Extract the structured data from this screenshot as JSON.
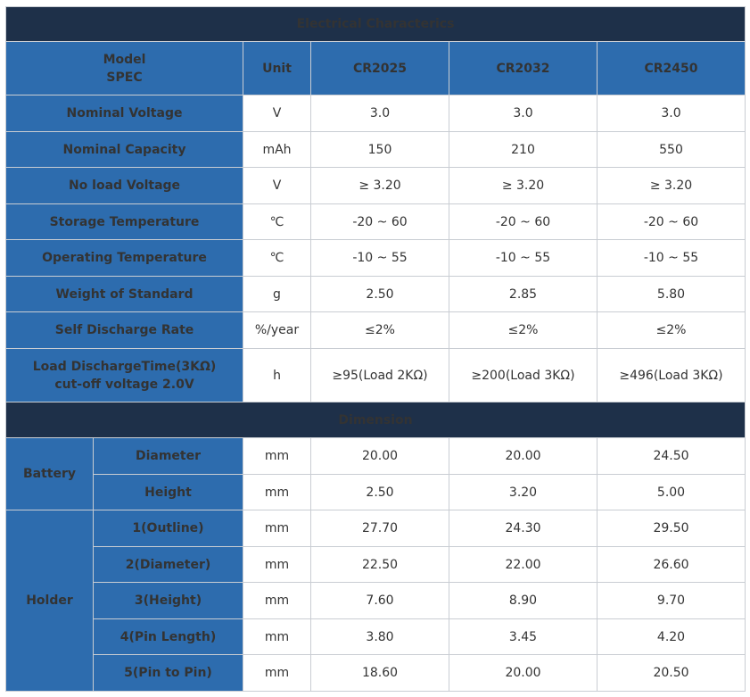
{
  "electrical": {
    "title": "Electrical Characterics",
    "header": {
      "label_line1": "Model",
      "label_line2": "SPEC",
      "unit": "Unit",
      "models": [
        "CR2025",
        "CR2032",
        "CR2450"
      ]
    },
    "rows": [
      {
        "label": "Nominal Voltage",
        "unit": "V",
        "values": [
          "3.0",
          "3.0",
          "3.0"
        ]
      },
      {
        "label": "Nominal Capacity",
        "unit": "mAh",
        "values": [
          "150",
          "210",
          "550"
        ]
      },
      {
        "label": "No load Voltage",
        "unit": "V",
        "values": [
          "≥ 3.20",
          "≥ 3.20",
          "≥ 3.20"
        ]
      },
      {
        "label": "Storage Temperature",
        "unit": "℃",
        "values": [
          "-20 ~ 60",
          "-20 ~ 60",
          "-20 ~ 60"
        ]
      },
      {
        "label": "Operating Temperature",
        "unit": "℃",
        "values": [
          "-10 ~ 55",
          "-10 ~ 55",
          "-10 ~ 55"
        ]
      },
      {
        "label": "Weight of Standard",
        "unit": "g",
        "values": [
          "2.50",
          "2.85",
          "5.80"
        ]
      },
      {
        "label": "Self Discharge Rate",
        "unit": "%/year",
        "values": [
          "≤2%",
          "≤2%",
          "≤2%"
        ]
      },
      {
        "label_line1": "Load DischargeTime(3KΩ)",
        "label_line2": "cut-off voltage 2.0V",
        "unit": "h",
        "values": [
          "≥95(Load 2KΩ)",
          "≥200(Load 3KΩ)",
          "≥496(Load 3KΩ)"
        ]
      }
    ]
  },
  "dimension": {
    "title": "Dimension",
    "groups": [
      {
        "name": "Battery",
        "rows": [
          {
            "label": "Diameter",
            "unit": "mm",
            "values": [
              "20.00",
              "20.00",
              "24.50"
            ]
          },
          {
            "label": "Height",
            "unit": "mm",
            "values": [
              "2.50",
              "3.20",
              "5.00"
            ]
          }
        ]
      },
      {
        "name": "Holder",
        "rows": [
          {
            "label": "1(Outline)",
            "unit": "mm",
            "values": [
              "27.70",
              "24.30",
              "29.50"
            ]
          },
          {
            "label": "2(Diameter)",
            "unit": "mm",
            "values": [
              "22.50",
              "22.00",
              "26.60"
            ]
          },
          {
            "label": "3(Height)",
            "unit": "mm",
            "values": [
              "7.60",
              "8.90",
              "9.70"
            ]
          },
          {
            "label": "4(Pin Length)",
            "unit": "mm",
            "values": [
              "3.80",
              "3.45",
              "4.20"
            ]
          },
          {
            "label": "5(Pin to Pin)",
            "unit": "mm",
            "values": [
              "18.60",
              "20.00",
              "20.50"
            ]
          }
        ]
      }
    ]
  },
  "colors": {
    "section_bar": "#1e3049",
    "header_blue": "#2d6cae",
    "grid": "#c9cdd3",
    "text": "#333333"
  }
}
